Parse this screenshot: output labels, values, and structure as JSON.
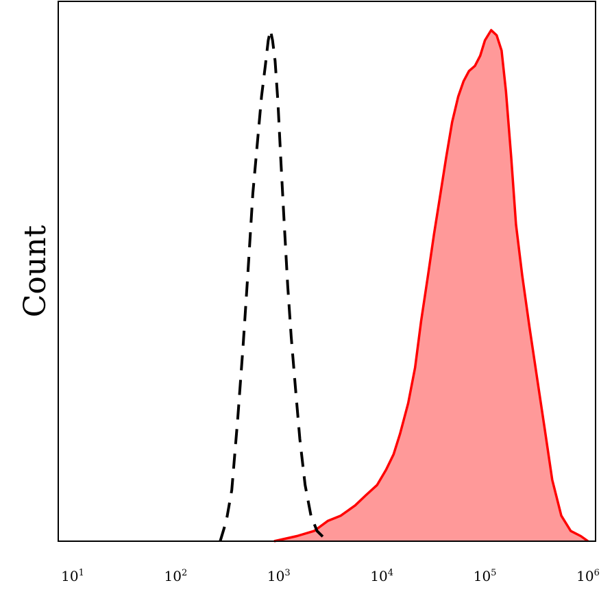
{
  "chart_data": {
    "type": "area",
    "title": "",
    "xlabel": "",
    "ylabel": "Count",
    "x_scale": "log",
    "xlim": [
      10,
      1000000
    ],
    "ylim": [
      0,
      100
    ],
    "grid": false,
    "legend": "none",
    "x_ticks": [
      {
        "base": "10",
        "exp": "1",
        "value": 10
      },
      {
        "base": "10",
        "exp": "2",
        "value": 100
      },
      {
        "base": "10",
        "exp": "3",
        "value": 1000
      },
      {
        "base": "10",
        "exp": "4",
        "value": 10000
      },
      {
        "base": "10",
        "exp": "5",
        "value": 100000
      },
      {
        "base": "10",
        "exp": "6",
        "value": 1000000
      }
    ],
    "series": [
      {
        "style": "dashed",
        "color": "#000000",
        "fill": "none",
        "x": [
          270,
          310,
          350,
          400,
          450,
          500,
          560,
          620,
          680,
          740,
          790,
          830,
          870,
          920,
          980,
          1050,
          1130,
          1220,
          1320,
          1450,
          1600,
          1800,
          2050,
          2350,
          2800,
          3100
        ],
        "y": [
          0,
          4,
          10,
          24,
          38,
          52,
          68,
          78,
          87,
          93,
          98,
          100,
          98,
          94,
          86,
          74,
          62,
          50,
          40,
          30,
          20,
          11,
          5,
          2,
          0.5,
          0
        ]
      },
      {
        "style": "solid",
        "color": "#ff0000",
        "fill": "#ff9999",
        "x": [
          900,
          1500,
          2200,
          3000,
          4000,
          5500,
          7000,
          9000,
          11000,
          13000,
          15000,
          18000,
          21000,
          24000,
          28000,
          32000,
          37000,
          42000,
          48000,
          55000,
          62000,
          70000,
          80000,
          90000,
          100000,
          115000,
          130000,
          145000,
          160000,
          180000,
          200000,
          230000,
          270000,
          320000,
          380000,
          450000,
          550000,
          680000,
          850000,
          1000000
        ],
        "y": [
          0,
          1,
          2,
          4,
          5,
          7,
          9,
          11,
          14,
          17,
          21,
          27,
          34,
          43,
          52,
          60,
          68,
          75,
          82,
          87,
          90,
          92,
          93,
          95,
          98,
          100,
          99,
          96,
          88,
          75,
          62,
          52,
          42,
          32,
          22,
          12,
          5,
          2,
          1,
          0
        ]
      }
    ]
  }
}
